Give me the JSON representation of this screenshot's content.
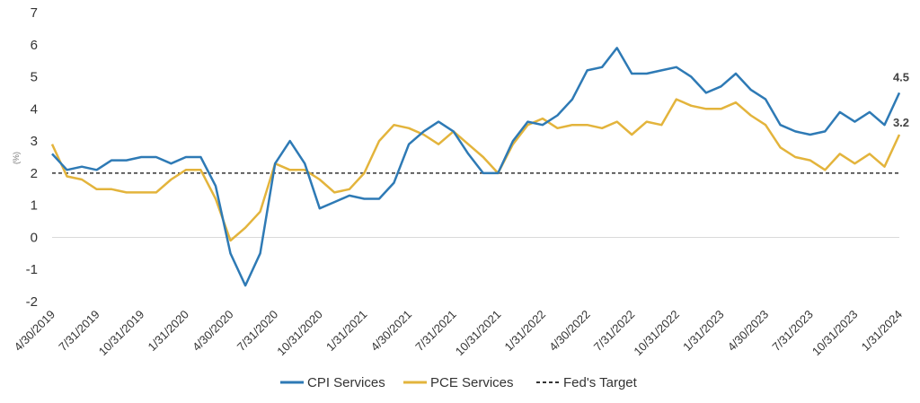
{
  "chart_data": {
    "type": "line",
    "ylabel": "(%)",
    "ylim": [
      -2,
      7
    ],
    "yticks": [
      -2,
      -1,
      0,
      1,
      2,
      3,
      4,
      5,
      6,
      7
    ],
    "ytick_labels": [
      "-2",
      "-1",
      "0",
      "1",
      "2",
      "3",
      "4",
      "5",
      "6",
      "7"
    ],
    "grid": "horizontal",
    "x_tick_labels": [
      "4/30/2019",
      "7/31/2019",
      "10/31/2019",
      "1/31/2020",
      "4/30/2020",
      "7/31/2020",
      "10/31/2020",
      "1/31/2021",
      "4/30/2021",
      "7/31/2021",
      "10/31/2021",
      "1/31/2022",
      "4/30/2022",
      "7/31/2022",
      "10/31/2022",
      "1/31/2023",
      "4/30/2023",
      "7/31/2023",
      "10/31/2023",
      "1/31/2024"
    ],
    "x": [
      "4/30/2019",
      "5/31/2019",
      "6/30/2019",
      "7/31/2019",
      "8/31/2019",
      "9/30/2019",
      "10/31/2019",
      "11/30/2019",
      "12/31/2019",
      "1/31/2020",
      "2/29/2020",
      "3/31/2020",
      "4/30/2020",
      "5/31/2020",
      "6/30/2020",
      "7/31/2020",
      "8/31/2020",
      "9/30/2020",
      "10/31/2020",
      "11/30/2020",
      "12/31/2020",
      "1/31/2021",
      "2/28/2021",
      "3/31/2021",
      "4/30/2021",
      "5/31/2021",
      "6/30/2021",
      "7/31/2021",
      "8/31/2021",
      "9/30/2021",
      "10/31/2021",
      "11/30/2021",
      "12/31/2021",
      "1/31/2022",
      "2/28/2022",
      "3/31/2022",
      "4/30/2022",
      "5/31/2022",
      "6/30/2022",
      "7/31/2022",
      "8/31/2022",
      "9/30/2022",
      "10/31/2022",
      "11/30/2022",
      "12/31/2022",
      "1/31/2023",
      "2/28/2023",
      "3/31/2023",
      "4/30/2023",
      "5/31/2023",
      "6/30/2023",
      "7/31/2023",
      "8/31/2023",
      "9/30/2023",
      "10/31/2023",
      "11/30/2023",
      "12/31/2023",
      "1/31/2024"
    ],
    "series": [
      {
        "name": "CPI Services",
        "color": "#2e7ab5",
        "values": [
          2.6,
          2.1,
          2.2,
          2.1,
          2.4,
          2.4,
          2.5,
          2.5,
          2.3,
          2.5,
          2.5,
          1.6,
          -0.5,
          -1.5,
          -0.5,
          2.3,
          3.0,
          2.3,
          0.9,
          1.1,
          1.3,
          1.2,
          1.2,
          1.7,
          2.9,
          3.3,
          3.6,
          3.3,
          2.6,
          2.0,
          2.0,
          3.0,
          3.6,
          3.5,
          3.8,
          4.3,
          5.2,
          5.3,
          5.9,
          5.1,
          5.1,
          5.2,
          5.3,
          5.0,
          4.5,
          4.7,
          5.1,
          4.6,
          4.3,
          3.5,
          3.3,
          3.2,
          3.3,
          3.9,
          3.6,
          3.9,
          3.5,
          4.5
        ]
      },
      {
        "name": "PCE Services",
        "color": "#e3b43c",
        "values": [
          2.9,
          1.9,
          1.8,
          1.5,
          1.5,
          1.4,
          1.4,
          1.4,
          1.8,
          2.1,
          2.1,
          1.2,
          -0.1,
          0.3,
          0.8,
          2.3,
          2.1,
          2.1,
          1.8,
          1.4,
          1.5,
          2.0,
          3.0,
          3.5,
          3.4,
          3.2,
          2.9,
          3.3,
          2.9,
          2.5,
          2.0,
          2.9,
          3.5,
          3.7,
          3.4,
          3.5,
          3.5,
          3.4,
          3.6,
          3.2,
          3.6,
          3.5,
          4.3,
          4.1,
          4.0,
          4.0,
          4.2,
          3.8,
          3.5,
          2.8,
          2.5,
          2.4,
          2.1,
          2.6,
          2.3,
          2.6,
          2.2,
          3.2
        ]
      }
    ],
    "reference_line": {
      "name": "Fed's Target",
      "value": 2,
      "color": "#333333",
      "style": "dashed"
    },
    "end_labels": [
      {
        "series": "CPI Services",
        "text": "4.5"
      },
      {
        "series": "PCE Services",
        "text": "3.2"
      }
    ],
    "legend": {
      "position": "bottom-center",
      "items": [
        {
          "label": "CPI Services",
          "color": "#2e7ab5",
          "style": "solid"
        },
        {
          "label": "PCE Services",
          "color": "#e3b43c",
          "style": "solid"
        },
        {
          "label": "Fed's Target",
          "color": "#333333",
          "style": "dashed"
        }
      ]
    }
  }
}
